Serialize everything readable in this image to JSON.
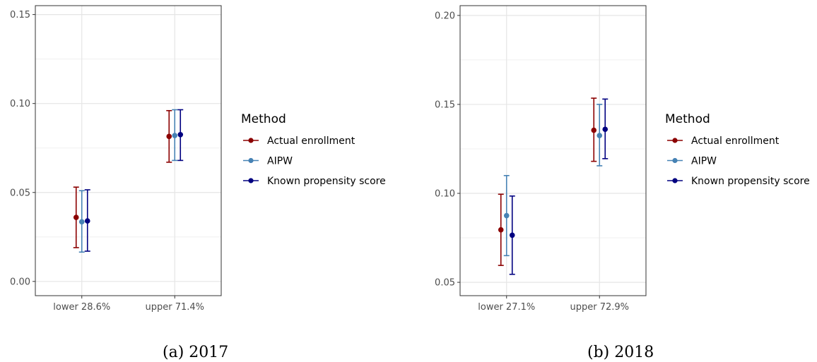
{
  "colors": {
    "Actual enrollment": "#8b0000",
    "AIPW": "#4682b4",
    "Known propensity score": "#000080"
  },
  "chart_data": [
    {
      "type": "scatter",
      "caption": "(a) 2017",
      "categories": [
        "lower 28.6%",
        "upper 71.4%"
      ],
      "ylim": [
        -0.008,
        0.155
      ],
      "yticks": [
        "0.00",
        "0.05",
        "0.10",
        "0.15"
      ],
      "ytick_values": [
        0,
        0.05,
        0.1,
        0.15
      ],
      "legend_title": "Method",
      "legend_position": "right",
      "grid": true,
      "series": [
        {
          "name": "Actual enrollment",
          "values": [
            0.036,
            0.0815
          ],
          "lower": [
            0.019,
            0.067
          ],
          "upper": [
            0.053,
            0.096
          ]
        },
        {
          "name": "AIPW",
          "values": [
            0.0335,
            0.082
          ],
          "lower": [
            0.0165,
            0.068
          ],
          "upper": [
            0.051,
            0.0965
          ]
        },
        {
          "name": "Known propensity score",
          "values": [
            0.034,
            0.0825
          ],
          "lower": [
            0.017,
            0.068
          ],
          "upper": [
            0.0515,
            0.0965
          ]
        }
      ]
    },
    {
      "type": "scatter",
      "caption": "(b) 2018",
      "categories": [
        "lower 27.1%",
        "upper 72.9%"
      ],
      "ylim": [
        0.0425,
        0.2055
      ],
      "yticks": [
        "0.05",
        "0.10",
        "0.15",
        "0.20"
      ],
      "ytick_values": [
        0.05,
        0.1,
        0.15,
        0.2
      ],
      "legend_title": "Method",
      "legend_position": "right",
      "grid": true,
      "series": [
        {
          "name": "Actual enrollment",
          "values": [
            0.0795,
            0.1355
          ],
          "lower": [
            0.0595,
            0.118
          ],
          "upper": [
            0.0995,
            0.1535
          ]
        },
        {
          "name": "AIPW",
          "values": [
            0.0875,
            0.1325
          ],
          "lower": [
            0.065,
            0.1155
          ],
          "upper": [
            0.11,
            0.15
          ]
        },
        {
          "name": "Known propensity score",
          "values": [
            0.0765,
            0.136
          ],
          "lower": [
            0.0545,
            0.1195
          ],
          "upper": [
            0.0985,
            0.153
          ]
        }
      ]
    }
  ]
}
